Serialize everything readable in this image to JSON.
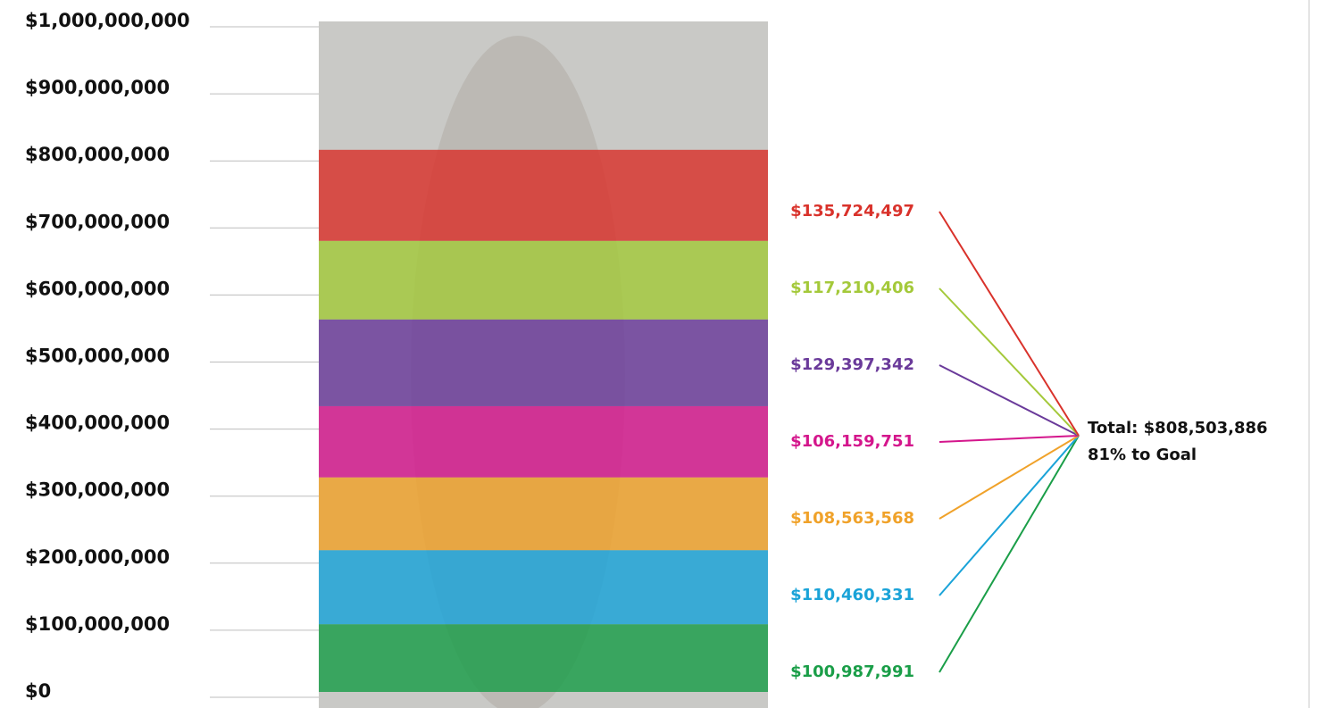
{
  "chart_data": {
    "type": "bar",
    "categories": [
      null
    ],
    "ylim": [
      0,
      1000000000
    ],
    "yticks": [
      {
        "value": 0,
        "label": "$0"
      },
      {
        "value": 100000000,
        "label": "$100,000,000"
      },
      {
        "value": 200000000,
        "label": "$200,000,000"
      },
      {
        "value": 300000000,
        "label": "$300,000,000"
      },
      {
        "value": 400000000,
        "label": "$400,000,000"
      },
      {
        "value": 500000000,
        "label": "$500,000,000"
      },
      {
        "value": 600000000,
        "label": "$600,000,000"
      },
      {
        "value": 700000000,
        "label": "$700,000,000"
      },
      {
        "value": 800000000,
        "label": "$800,000,000"
      },
      {
        "value": 900000000,
        "label": "$900,000,000"
      },
      {
        "value": 1000000000,
        "label": "$1,000,000,000"
      }
    ],
    "grid": true,
    "stacked": true,
    "series": [
      {
        "color": "#1a9e48",
        "values": [
          100987991
        ],
        "value_labels": [
          "$100,987,991"
        ]
      },
      {
        "color": "#1aa3d8",
        "values": [
          110460331
        ],
        "value_labels": [
          "$110,460,331"
        ]
      },
      {
        "color": "#f0a22a",
        "values": [
          108563568
        ],
        "value_labels": [
          "$108,563,568"
        ]
      },
      {
        "color": "#d4168c",
        "values": [
          106159751
        ],
        "value_labels": [
          "$106,159,751"
        ]
      },
      {
        "color": "#6a3a9a",
        "values": [
          129397342
        ],
        "value_labels": [
          "$129,397,342"
        ]
      },
      {
        "color": "#a4c93a",
        "values": [
          117210406
        ],
        "value_labels": [
          "$117,210,406"
        ]
      },
      {
        "color": "#d9322b",
        "values": [
          135724497
        ],
        "value_labels": [
          "$135,724,497"
        ]
      }
    ],
    "total_label": "Total: $808,503,886",
    "goal_label": "81% to Goal"
  }
}
